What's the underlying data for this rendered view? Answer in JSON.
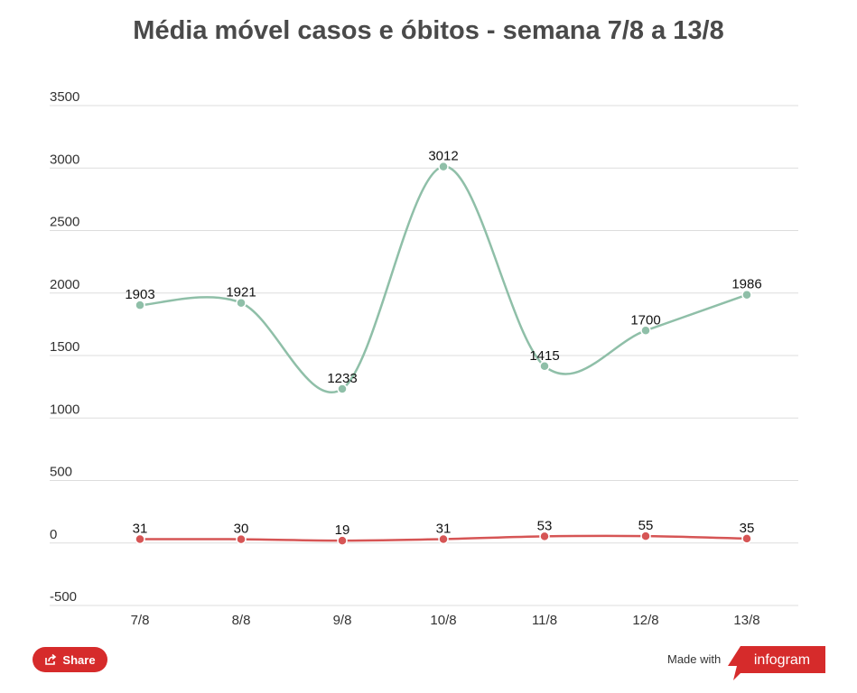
{
  "title": "Média móvel casos e óbitos - semana 7/8 a 13/8",
  "footer": {
    "share_label": "Share",
    "made_with": "Made with",
    "brand": "infogram"
  },
  "colors": {
    "cases": "#8fbfa8",
    "deaths": "#d65555",
    "share_bg": "#d62b2b",
    "brand_bg": "#d62b2b"
  },
  "chart_data": {
    "type": "line",
    "categories": [
      "7/8",
      "8/8",
      "9/8",
      "10/8",
      "11/8",
      "12/8",
      "13/8"
    ],
    "y_ticks": [
      3500,
      3000,
      2500,
      2000,
      1500,
      1000,
      500,
      0,
      -500
    ],
    "ylim": [
      -500,
      3500
    ],
    "grid": true,
    "series": [
      {
        "key": "cases",
        "values": [
          1903,
          1921,
          1233,
          3012,
          1415,
          1700,
          1986
        ]
      },
      {
        "key": "deaths",
        "values": [
          31,
          30,
          19,
          31,
          53,
          55,
          35
        ]
      }
    ]
  }
}
